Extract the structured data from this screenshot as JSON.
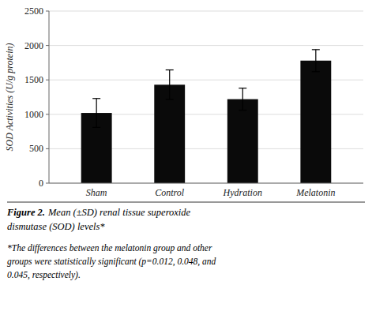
{
  "chart_data": {
    "type": "bar",
    "categories": [
      "Sham",
      "Control",
      "Hydration",
      "Melatonin"
    ],
    "values": [
      1020,
      1430,
      1220,
      1780
    ],
    "errors": [
      210,
      215,
      160,
      160
    ],
    "color": "#0a0a0a",
    "ylabel": "SOD Activities (U/g protein)",
    "ylim": [
      0,
      2500
    ],
    "yticks": [
      0,
      500,
      1000,
      1500,
      2000,
      2500
    ],
    "grid": true,
    "annotations": [
      "Figure 2.",
      "Mean (±SD) renal tissue superoxide",
      "dismutase (SOD) levels*",
      "*The differences between the melatonin group and other",
      "groups were statistically significant (p=0.012, 0.048, and",
      "0.045, respectively)."
    ]
  }
}
